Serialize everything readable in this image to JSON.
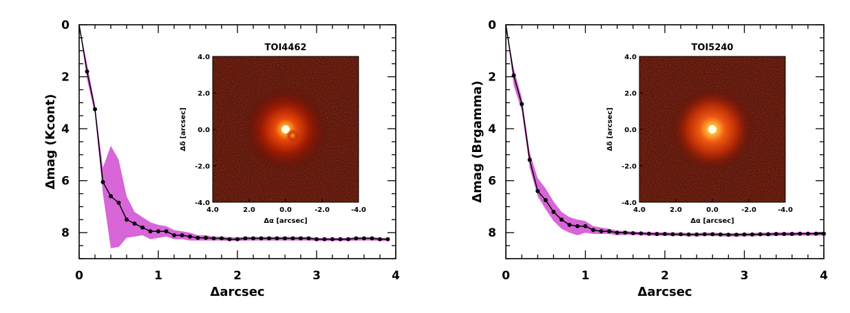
{
  "chart_data": [
    {
      "type": "line",
      "xlabel": "Δarcsec",
      "ylabel": "Δmag (Kcont)",
      "xlim": [
        0,
        4
      ],
      "ylim": [
        0,
        9
      ],
      "y_inverted": true,
      "xticks": [
        0,
        1,
        2,
        3,
        4
      ],
      "yticks": [
        0,
        2,
        4,
        6,
        8
      ],
      "series_color": "#000000",
      "band_color": "#d866d8",
      "x": [
        0.0,
        0.1,
        0.2,
        0.3,
        0.4,
        0.5,
        0.6,
        0.7,
        0.8,
        0.9,
        1.0,
        1.1,
        1.2,
        1.3,
        1.4,
        1.5,
        1.6,
        1.7,
        1.8,
        1.9,
        2.0,
        2.1,
        2.2,
        2.3,
        2.4,
        2.5,
        2.6,
        2.7,
        2.8,
        2.9,
        3.0,
        3.1,
        3.2,
        3.3,
        3.4,
        3.5,
        3.6,
        3.7,
        3.8,
        3.9
      ],
      "y": [
        0.0,
        1.8,
        3.25,
        6.05,
        6.6,
        6.85,
        7.5,
        7.65,
        7.8,
        7.95,
        7.95,
        7.95,
        8.1,
        8.1,
        8.15,
        8.2,
        8.2,
        8.22,
        8.22,
        8.25,
        8.25,
        8.22,
        8.22,
        8.22,
        8.22,
        8.22,
        8.22,
        8.22,
        8.22,
        8.22,
        8.25,
        8.25,
        8.25,
        8.25,
        8.25,
        8.22,
        8.22,
        8.22,
        8.25,
        8.25
      ],
      "band_low": [
        0.0,
        1.5,
        3.1,
        5.5,
        4.65,
        5.2,
        6.6,
        7.2,
        7.4,
        7.6,
        7.7,
        7.75,
        7.9,
        7.95,
        8.0,
        8.1,
        8.1,
        8.15,
        8.15,
        8.18,
        8.18,
        8.16,
        8.16,
        8.16,
        8.16,
        8.16,
        8.16,
        8.16,
        8.16,
        8.16,
        8.2,
        8.2,
        8.2,
        8.2,
        8.2,
        8.17,
        8.17,
        8.17,
        8.2,
        8.2
      ],
      "band_high": [
        0.0,
        2.1,
        3.45,
        6.5,
        8.6,
        8.55,
        8.2,
        8.15,
        8.1,
        8.25,
        8.2,
        8.15,
        8.25,
        8.25,
        8.3,
        8.3,
        8.3,
        8.3,
        8.3,
        8.32,
        8.32,
        8.3,
        8.3,
        8.3,
        8.3,
        8.3,
        8.3,
        8.3,
        8.3,
        8.3,
        8.32,
        8.32,
        8.32,
        8.32,
        8.32,
        8.3,
        8.3,
        8.3,
        8.32,
        8.32
      ],
      "inset": {
        "title": "TOI4462",
        "xlabel": "Δα [arcsec]",
        "ylabel": "Δδ [arcsec]",
        "xlim": [
          4.0,
          -4.0
        ],
        "ylim": [
          -4.0,
          4.0
        ],
        "xticks": [
          "4.0",
          "2.0",
          "0.0",
          "-2.0",
          "-4.0"
        ],
        "yticks": [
          "4.0",
          "2.0",
          "0.0",
          "-2.0",
          "-4.0"
        ]
      }
    },
    {
      "type": "line",
      "xlabel": "Δarcsec",
      "ylabel": "Δmag (Brgamma)",
      "xlim": [
        0,
        4
      ],
      "ylim": [
        0,
        9
      ],
      "y_inverted": true,
      "xticks": [
        0,
        1,
        2,
        3,
        4
      ],
      "yticks": [
        0,
        2,
        4,
        6,
        8
      ],
      "series_color": "#000000",
      "band_color": "#d866d8",
      "x": [
        0.0,
        0.1,
        0.2,
        0.3,
        0.4,
        0.5,
        0.6,
        0.7,
        0.8,
        0.9,
        1.0,
        1.1,
        1.2,
        1.3,
        1.4,
        1.5,
        1.6,
        1.7,
        1.8,
        1.9,
        2.0,
        2.1,
        2.2,
        2.3,
        2.4,
        2.5,
        2.6,
        2.7,
        2.8,
        2.9,
        3.0,
        3.1,
        3.2,
        3.3,
        3.4,
        3.5,
        3.6,
        3.7,
        3.8,
        3.9,
        4.0
      ],
      "y": [
        0.0,
        1.95,
        3.05,
        5.2,
        6.4,
        6.75,
        7.2,
        7.5,
        7.7,
        7.75,
        7.75,
        7.9,
        7.95,
        7.95,
        8.0,
        8.0,
        8.02,
        8.03,
        8.04,
        8.05,
        8.05,
        8.06,
        8.06,
        8.07,
        8.07,
        8.06,
        8.06,
        8.07,
        8.08,
        8.08,
        8.07,
        8.07,
        8.06,
        8.06,
        8.05,
        8.05,
        8.05,
        8.04,
        8.04,
        8.04,
        8.04
      ],
      "band_low": [
        0.0,
        1.7,
        2.8,
        4.9,
        5.9,
        6.3,
        6.8,
        7.2,
        7.4,
        7.5,
        7.55,
        7.75,
        7.8,
        7.85,
        7.92,
        7.93,
        7.96,
        7.97,
        7.98,
        7.99,
        7.99,
        8.0,
        8.0,
        8.01,
        8.01,
        8.0,
        8.0,
        8.01,
        8.02,
        8.02,
        8.01,
        8.01,
        8.0,
        8.0,
        7.99,
        7.99,
        7.99,
        7.98,
        7.98,
        7.98,
        7.98
      ],
      "band_high": [
        0.0,
        2.35,
        3.3,
        5.5,
        6.6,
        7.1,
        7.55,
        7.85,
        8.0,
        8.1,
        8.0,
        8.05,
        8.05,
        8.05,
        8.1,
        8.08,
        8.09,
        8.1,
        8.11,
        8.12,
        8.12,
        8.13,
        8.13,
        8.14,
        8.14,
        8.13,
        8.13,
        8.14,
        8.15,
        8.15,
        8.14,
        8.14,
        8.13,
        8.13,
        8.12,
        8.12,
        8.12,
        8.11,
        8.11,
        8.11,
        8.11
      ],
      "inset": {
        "title": "TOI5240",
        "xlabel": "Δα [arcsec]",
        "ylabel": "Δδ [arcsec]",
        "xlim": [
          4.0,
          -4.0
        ],
        "ylim": [
          -4.0,
          4.0
        ],
        "xticks": [
          "4.0",
          "2.0",
          "0.0",
          "-2.0",
          "-4.0"
        ],
        "yticks": [
          "4.0",
          "2.0",
          "0.0",
          "-2.0",
          "-4.0"
        ]
      }
    }
  ]
}
